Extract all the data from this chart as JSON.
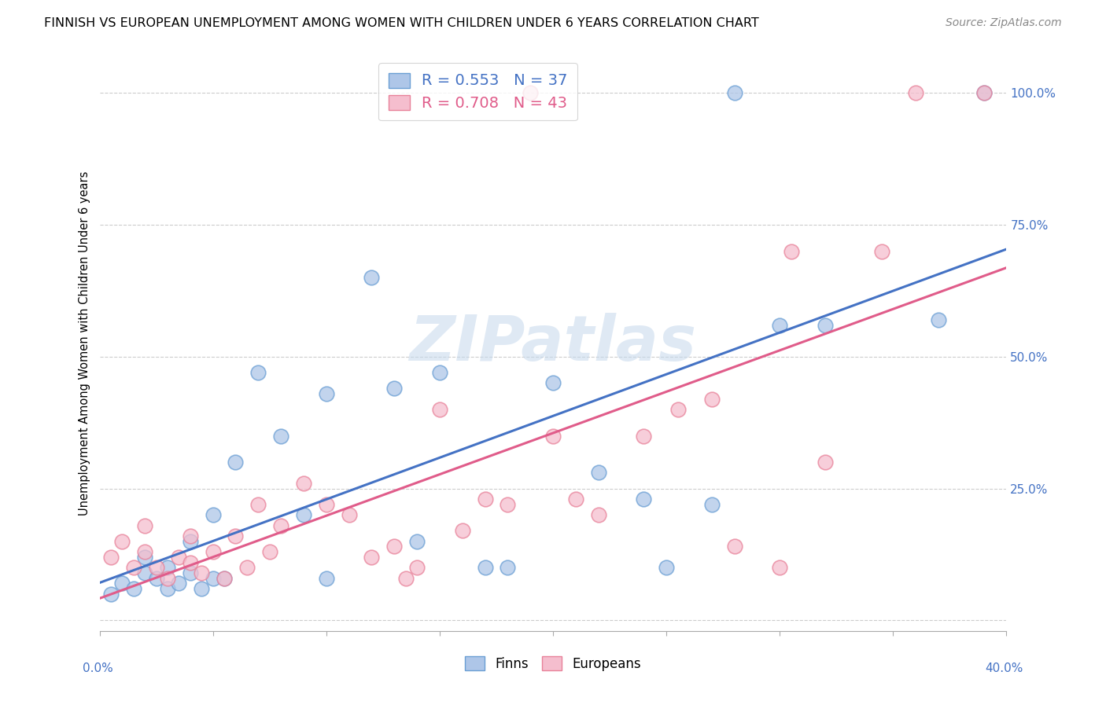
{
  "title": "FINNISH VS EUROPEAN UNEMPLOYMENT AMONG WOMEN WITH CHILDREN UNDER 6 YEARS CORRELATION CHART",
  "source": "Source: ZipAtlas.com",
  "ylabel": "Unemployment Among Women with Children Under 6 years",
  "xmin": 0.0,
  "xmax": 0.4,
  "ymin": -0.02,
  "ymax": 1.07,
  "yticks": [
    0.0,
    0.25,
    0.5,
    0.75,
    1.0
  ],
  "ytick_labels": [
    "",
    "25.0%",
    "50.0%",
    "75.0%",
    "100.0%"
  ],
  "blue_R": 0.553,
  "blue_N": 37,
  "pink_R": 0.708,
  "pink_N": 43,
  "blue_face": "#aec6e8",
  "pink_face": "#f5bece",
  "blue_edge": "#6b9fd4",
  "pink_edge": "#e8829a",
  "blue_line": "#4472c4",
  "pink_line": "#e05c8a",
  "legend_label_blue": "Finns",
  "legend_label_pink": "Europeans",
  "watermark_text": "ZIPatlas",
  "background_color": "#ffffff",
  "grid_color": "#cccccc",
  "blue_x": [
    0.005,
    0.01,
    0.015,
    0.02,
    0.02,
    0.025,
    0.03,
    0.03,
    0.035,
    0.04,
    0.04,
    0.045,
    0.05,
    0.05,
    0.055,
    0.06,
    0.07,
    0.08,
    0.09,
    0.1,
    0.1,
    0.12,
    0.13,
    0.14,
    0.15,
    0.17,
    0.18,
    0.2,
    0.22,
    0.24,
    0.25,
    0.27,
    0.28,
    0.3,
    0.32,
    0.37,
    0.39
  ],
  "blue_y": [
    0.05,
    0.07,
    0.06,
    0.09,
    0.12,
    0.08,
    0.06,
    0.1,
    0.07,
    0.09,
    0.15,
    0.06,
    0.08,
    0.2,
    0.08,
    0.3,
    0.47,
    0.35,
    0.2,
    0.43,
    0.08,
    0.65,
    0.44,
    0.15,
    0.47,
    0.1,
    0.1,
    0.45,
    0.28,
    0.23,
    0.1,
    0.22,
    1.0,
    0.56,
    0.56,
    0.57,
    1.0
  ],
  "pink_x": [
    0.005,
    0.01,
    0.015,
    0.02,
    0.02,
    0.025,
    0.03,
    0.035,
    0.04,
    0.04,
    0.045,
    0.05,
    0.055,
    0.06,
    0.065,
    0.07,
    0.075,
    0.08,
    0.09,
    0.1,
    0.11,
    0.12,
    0.13,
    0.135,
    0.14,
    0.15,
    0.16,
    0.17,
    0.18,
    0.19,
    0.2,
    0.21,
    0.22,
    0.24,
    0.255,
    0.27,
    0.28,
    0.3,
    0.305,
    0.32,
    0.345,
    0.36,
    0.39
  ],
  "pink_y": [
    0.12,
    0.15,
    0.1,
    0.13,
    0.18,
    0.1,
    0.08,
    0.12,
    0.11,
    0.16,
    0.09,
    0.13,
    0.08,
    0.16,
    0.1,
    0.22,
    0.13,
    0.18,
    0.26,
    0.22,
    0.2,
    0.12,
    0.14,
    0.08,
    0.1,
    0.4,
    0.17,
    0.23,
    0.22,
    1.0,
    0.35,
    0.23,
    0.2,
    0.35,
    0.4,
    0.42,
    0.14,
    0.1,
    0.7,
    0.3,
    0.7,
    1.0,
    1.0
  ]
}
